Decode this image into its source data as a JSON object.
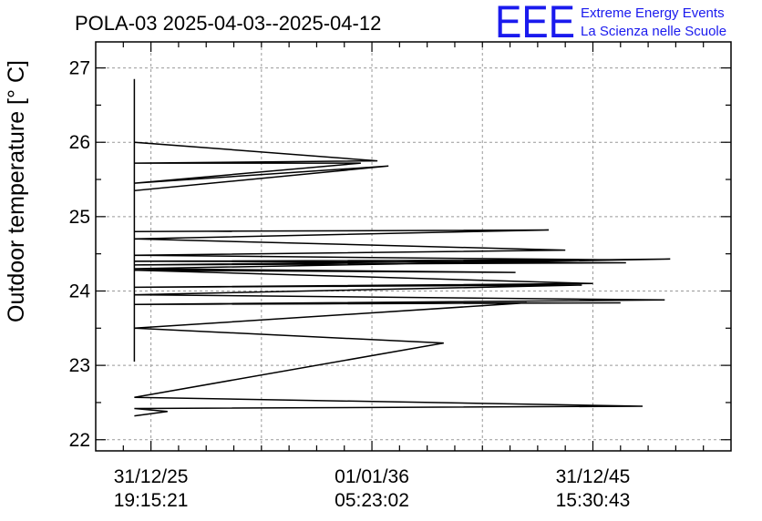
{
  "chart_data": {
    "type": "line",
    "title": "POLA-03 2025-04-03--2025-04-12",
    "xlabel": "",
    "ylabel": "Outdoor temperature [° C]",
    "ylim": [
      21.85,
      27.35
    ],
    "xlim": [
      -0.5,
      5.25
    ],
    "yticks": [
      22,
      23,
      24,
      25,
      26,
      27
    ],
    "yticks_labels": [
      "22",
      "23",
      "24",
      "25",
      "26",
      "27"
    ],
    "xticks": [
      {
        "pos": 0,
        "line1": "31/12/25",
        "line2": "19:15:21"
      },
      {
        "pos": 2,
        "line1": "01/01/36",
        "line2": "05:23:02"
      },
      {
        "pos": 4,
        "line1": "31/12/45",
        "line2": "15:30:43"
      }
    ],
    "grid": true,
    "series": [
      {
        "name": "Outdoor temperature",
        "x": [
          -0.15,
          -0.15,
          -0.15,
          2.05,
          -0.15,
          1.9,
          -0.15,
          2.15,
          -0.15,
          -0.15,
          3.6,
          -0.15,
          3.75,
          -0.15,
          4.15,
          -0.15,
          4.3,
          -0.15,
          4.7,
          -0.15,
          3.3,
          -0.15,
          4.0,
          -0.15,
          3.9,
          -0.15,
          4.65,
          -0.15,
          4.25,
          -0.15,
          3.4,
          -0.15,
          2.65,
          -0.15,
          4.45,
          -0.15,
          0.15,
          -0.15
        ],
        "y": [
          26.85,
          23.05,
          26.0,
          25.75,
          25.72,
          25.72,
          25.45,
          25.68,
          25.35,
          24.8,
          24.82,
          24.7,
          24.55,
          24.48,
          24.42,
          24.4,
          24.38,
          24.35,
          24.43,
          24.3,
          24.25,
          24.28,
          24.1,
          24.05,
          24.08,
          23.95,
          23.88,
          23.82,
          23.84,
          23.82,
          23.84,
          23.5,
          23.3,
          22.57,
          22.45,
          22.42,
          22.38,
          22.32
        ]
      }
    ]
  },
  "logo": {
    "mark": "EEE",
    "line1": "Extreme Energy Events",
    "line2": "La Scienza nelle Scuole"
  }
}
